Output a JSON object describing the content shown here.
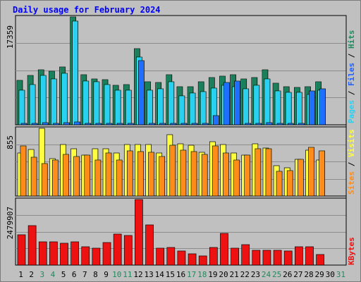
{
  "title": "Daily usage for February 2024",
  "colors": {
    "hits": "#1a7f5a",
    "files": "#2ad0f0",
    "pages": "#1e6fff",
    "visits": "#ffff40",
    "sites": "#ff8c1a",
    "kbytes": "#ee1111",
    "label_blue": "#1e5fff",
    "label_green": "#1f8a5c",
    "weekend_day": "#1f8a5c"
  },
  "chart_data": [
    {
      "type": "bar",
      "title": "Daily usage for February 2024",
      "categories": [
        "1",
        "2",
        "3",
        "4",
        "5",
        "6",
        "7",
        "8",
        "9",
        "10",
        "11",
        "12",
        "13",
        "14",
        "15",
        "16",
        "17",
        "18",
        "19",
        "20",
        "21",
        "22",
        "23",
        "24",
        "25",
        "26",
        "27",
        "28",
        "29",
        "30",
        "31"
      ],
      "weekend_categories": [
        "3",
        "4",
        "10",
        "11",
        "17",
        "18",
        "24",
        "25",
        "31"
      ],
      "ymax_label": "17359",
      "ylim": [
        0,
        17359
      ],
      "legend": [
        "Hits",
        "Files",
        "Pages"
      ],
      "series": [
        {
          "name": "Hits",
          "values": [
            7100,
            7900,
            8900,
            8600,
            9300,
            17359,
            8100,
            7400,
            7300,
            6400,
            6500,
            12300,
            6900,
            6800,
            8000,
            6100,
            6100,
            6900,
            7600,
            7800,
            8100,
            7400,
            7600,
            8800,
            6700,
            6100,
            6000,
            6100,
            6900,
            null,
            null
          ]
        },
        {
          "name": "Files",
          "values": [
            5600,
            6500,
            7900,
            7400,
            8300,
            16700,
            7000,
            6900,
            6500,
            5600,
            5600,
            10900,
            5600,
            5800,
            6900,
            4700,
            5100,
            5300,
            5900,
            6400,
            6100,
            5800,
            6300,
            7400,
            5400,
            5200,
            5200,
            4900,
            5600,
            null,
            null
          ]
        },
        {
          "name": "Pages",
          "values": [
            250,
            260,
            300,
            280,
            310,
            450,
            250,
            240,
            220,
            200,
            210,
            10300,
            220,
            230,
            260,
            190,
            190,
            200,
            1500,
            6800,
            7000,
            270,
            260,
            300,
            210,
            190,
            190,
            5500,
            5800,
            null,
            null
          ]
        }
      ]
    },
    {
      "type": "bar",
      "ymax_label": "855",
      "ylim": [
        0,
        855
      ],
      "legend": [
        "Visits",
        "Sites"
      ],
      "series": [
        {
          "name": "Visits",
          "values": [
            545,
            587,
            855,
            476,
            654,
            601,
            520,
            601,
            596,
            546,
            654,
            646,
            646,
            544,
            775,
            656,
            645,
            555,
            688,
            654,
            545,
            520,
            658,
            609,
            385,
            356,
            466,
            582,
            452,
            null,
            null
          ]
        },
        {
          "name": "Sites",
          "values": [
            636,
            491,
            411,
            450,
            527,
            497,
            520,
            455,
            539,
            453,
            568,
            559,
            552,
            496,
            642,
            583,
            559,
            526,
            630,
            545,
            454,
            520,
            598,
            595,
            312,
            321,
            466,
            616,
            568,
            null,
            null
          ]
        }
      ]
    },
    {
      "type": "bar",
      "ymax_label": "2479907",
      "ylim": [
        0,
        2479907
      ],
      "legend": [
        "KBytes"
      ],
      "series": [
        {
          "name": "KBytes",
          "values": [
            1140000,
            1490000,
            890000,
            880000,
            820000,
            890000,
            690000,
            630000,
            860000,
            1180000,
            1120000,
            2479907,
            1530000,
            640000,
            670000,
            540000,
            420000,
            350000,
            660000,
            1190000,
            650000,
            770000,
            570000,
            560000,
            550000,
            520000,
            680000,
            680000,
            400000,
            null,
            null
          ]
        }
      ]
    }
  ]
}
